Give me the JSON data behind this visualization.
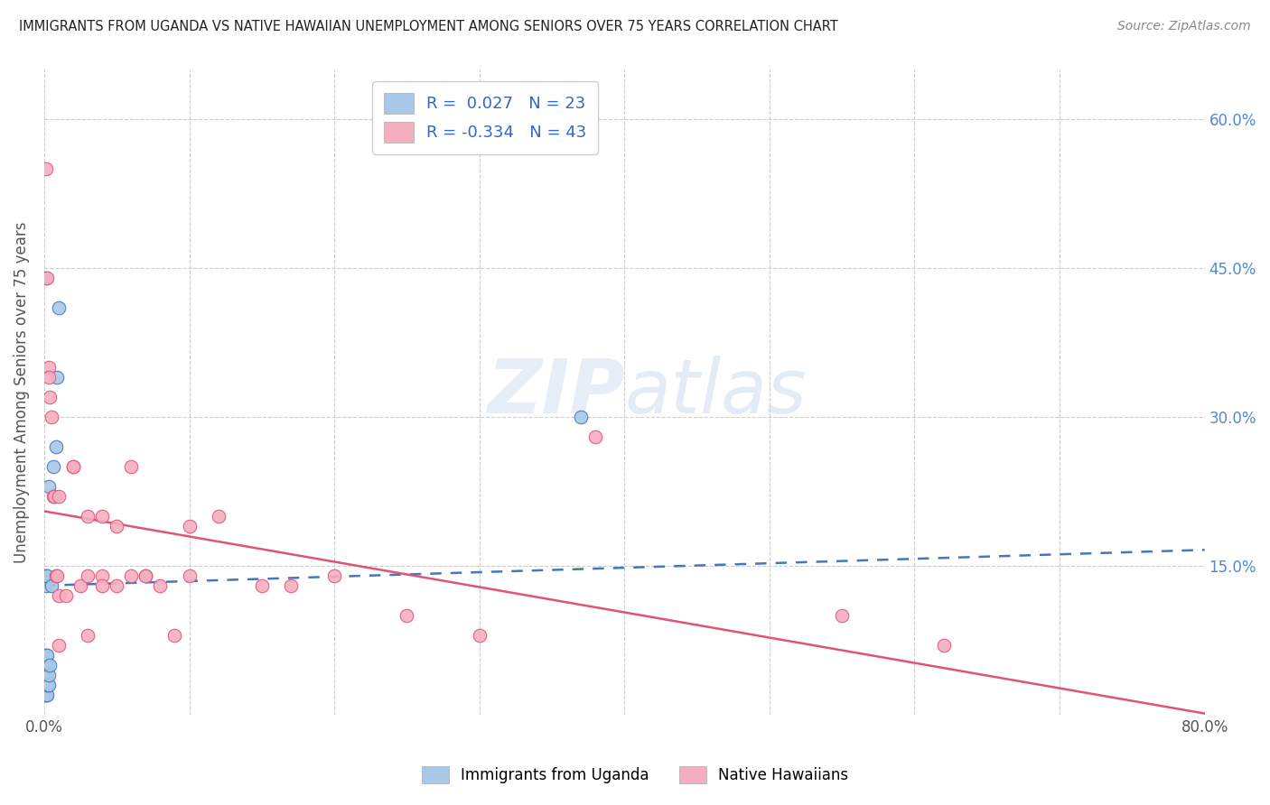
{
  "title": "IMMIGRANTS FROM UGANDA VS NATIVE HAWAIIAN UNEMPLOYMENT AMONG SENIORS OVER 75 YEARS CORRELATION CHART",
  "source": "Source: ZipAtlas.com",
  "ylabel": "Unemployment Among Seniors over 75 years",
  "xlim": [
    0.0,
    0.8
  ],
  "ylim": [
    0.0,
    0.65
  ],
  "r_uganda": 0.027,
  "n_uganda": 23,
  "r_hawaiian": -0.334,
  "n_hawaiian": 43,
  "color_uganda": "#a8c8e8",
  "color_hawaiian": "#f5aec0",
  "color_uganda_line": "#4477bb",
  "color_hawaiian_line": "#e05575",
  "legend_r_color": "#3366cc",
  "watermark": "ZIPatlas",
  "uganda_intercept": 0.13,
  "uganda_slope": 0.045,
  "hawaiian_intercept": 0.205,
  "hawaiian_slope": -0.255,
  "uganda_x": [
    0.001,
    0.001,
    0.001,
    0.001,
    0.001,
    0.001,
    0.001,
    0.001,
    0.002,
    0.002,
    0.002,
    0.002,
    0.002,
    0.003,
    0.003,
    0.003,
    0.004,
    0.005,
    0.006,
    0.008,
    0.009,
    0.01,
    0.37
  ],
  "uganda_y": [
    0.02,
    0.02,
    0.03,
    0.04,
    0.05,
    0.06,
    0.13,
    0.14,
    0.02,
    0.03,
    0.05,
    0.06,
    0.14,
    0.03,
    0.04,
    0.23,
    0.05,
    0.13,
    0.25,
    0.27,
    0.34,
    0.41,
    0.3
  ],
  "hawaiian_x": [
    0.001,
    0.001,
    0.002,
    0.003,
    0.003,
    0.004,
    0.005,
    0.006,
    0.007,
    0.008,
    0.009,
    0.01,
    0.01,
    0.01,
    0.015,
    0.02,
    0.02,
    0.025,
    0.03,
    0.03,
    0.03,
    0.04,
    0.04,
    0.04,
    0.05,
    0.05,
    0.06,
    0.06,
    0.07,
    0.07,
    0.08,
    0.09,
    0.1,
    0.1,
    0.12,
    0.15,
    0.17,
    0.2,
    0.25,
    0.3,
    0.38,
    0.55,
    0.62
  ],
  "hawaiian_y": [
    0.55,
    0.44,
    0.44,
    0.35,
    0.34,
    0.32,
    0.3,
    0.22,
    0.22,
    0.14,
    0.14,
    0.22,
    0.12,
    0.07,
    0.12,
    0.25,
    0.25,
    0.13,
    0.2,
    0.14,
    0.08,
    0.2,
    0.14,
    0.13,
    0.19,
    0.13,
    0.14,
    0.25,
    0.14,
    0.14,
    0.13,
    0.08,
    0.19,
    0.14,
    0.2,
    0.13,
    0.13,
    0.14,
    0.1,
    0.08,
    0.28,
    0.1,
    0.07
  ]
}
